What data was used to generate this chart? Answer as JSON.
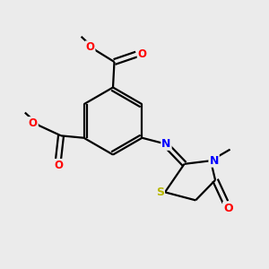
{
  "bg_color": "#ebebeb",
  "bond_color": "#000000",
  "atom_colors": {
    "O": "#ff0000",
    "N": "#0000ff",
    "S": "#b8b800",
    "C": "#000000"
  },
  "figsize": [
    3.0,
    3.0
  ],
  "dpi": 100
}
